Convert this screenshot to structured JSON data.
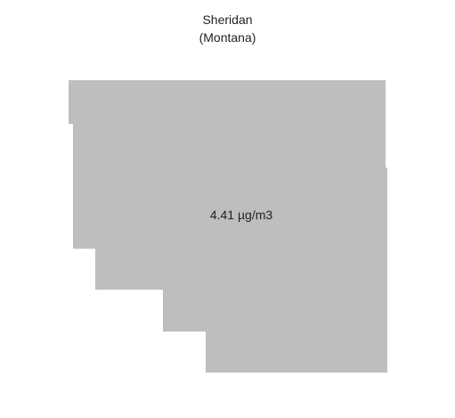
{
  "map": {
    "title": "Sheridan",
    "subtitle": "(Montana)",
    "region": {
      "name": "Sheridan",
      "value_label": "4.41 µg/m3",
      "fill_color": "#bebebe"
    }
  }
}
